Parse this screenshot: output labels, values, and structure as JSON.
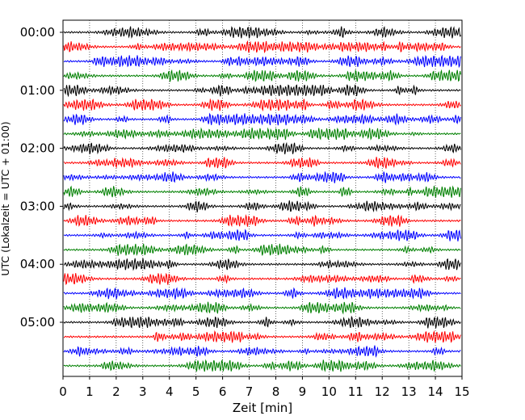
{
  "chart_data": {
    "type": "line",
    "title": "",
    "xlabel": "Zeit  [min]",
    "ylabel": "UTC (Lokalzeit = UTC + 01:00)",
    "xlim": [
      0,
      15
    ],
    "x_ticks": [
      "0",
      "1",
      "2",
      "3",
      "4",
      "5",
      "6",
      "7",
      "8",
      "9",
      "10",
      "11",
      "12",
      "13",
      "14",
      "15"
    ],
    "y_ticks": [
      "00:00",
      "01:00",
      "02:00",
      "03:00",
      "04:00",
      "05:00"
    ],
    "grid": "vertical dotted lines at each minute",
    "trace_count": 24,
    "trace_interval_min": 15,
    "trace_colors": [
      "#000000",
      "#ff0000",
      "#0000ff",
      "#008000"
    ],
    "trace_start_times": [
      "00:00",
      "00:15",
      "00:30",
      "00:45",
      "01:00",
      "01:15",
      "01:30",
      "01:45",
      "02:00",
      "02:15",
      "02:30",
      "02:45",
      "03:00",
      "03:15",
      "03:30",
      "03:45",
      "04:00",
      "04:15",
      "04:30",
      "04:45",
      "05:00",
      "05:15",
      "05:30",
      "05:45"
    ],
    "series_note": "continuous seismogram traces, each 15 min long, small oscillating amplitude"
  }
}
